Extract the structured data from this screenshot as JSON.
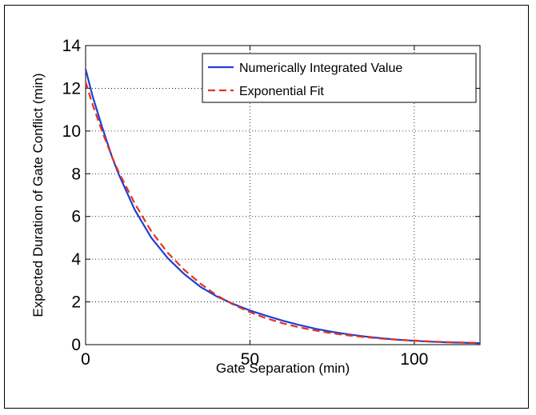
{
  "chart_data": {
    "type": "line",
    "xlabel": "Gate Separation (min)",
    "ylabel": "Expected Duration of Gate Conflict (min)",
    "xlim": [
      0,
      120
    ],
    "ylim": [
      0,
      14
    ],
    "x_ticks": [
      "0",
      "50",
      "100"
    ],
    "y_ticks": [
      "0",
      "2",
      "4",
      "6",
      "8",
      "10",
      "12",
      "14"
    ],
    "grid": true,
    "legend_position": "top-right",
    "series": [
      {
        "name": "Numerically Integrated Value",
        "color": "#1f3fd6",
        "style": "solid",
        "x": [
          0,
          2,
          5,
          8,
          10,
          15,
          20,
          25,
          30,
          35,
          40,
          45,
          50,
          55,
          60,
          65,
          70,
          75,
          80,
          85,
          90,
          95,
          100,
          105,
          110,
          115,
          120
        ],
        "y": [
          12.9,
          11.7,
          10.2,
          8.8,
          8.0,
          6.3,
          5.0,
          4.05,
          3.3,
          2.7,
          2.25,
          1.9,
          1.6,
          1.35,
          1.12,
          0.92,
          0.74,
          0.6,
          0.48,
          0.38,
          0.3,
          0.23,
          0.18,
          0.14,
          0.11,
          0.09,
          0.07
        ]
      },
      {
        "name": "Exponential Fit",
        "color": "#e8321e",
        "style": "dashed",
        "x": [
          0,
          2,
          5,
          8,
          10,
          15,
          20,
          25,
          30,
          35,
          40,
          45,
          50,
          55,
          60,
          65,
          70,
          75,
          80,
          85,
          90,
          95,
          100,
          105,
          110,
          115,
          120
        ],
        "y": [
          12.3,
          11.3,
          10.0,
          8.8,
          8.1,
          6.6,
          5.3,
          4.3,
          3.5,
          2.85,
          2.3,
          1.87,
          1.52,
          1.23,
          1.0,
          0.81,
          0.66,
          0.53,
          0.43,
          0.35,
          0.28,
          0.23,
          0.19,
          0.15,
          0.12,
          0.1,
          0.08
        ]
      }
    ]
  }
}
